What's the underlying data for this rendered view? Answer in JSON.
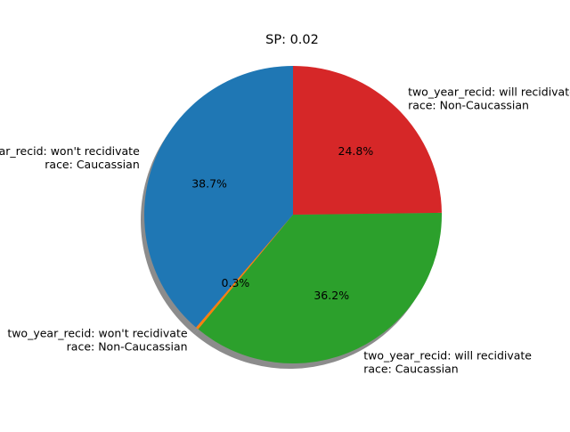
{
  "chart_data": {
    "type": "pie",
    "title": "SP: 0.02",
    "shadow": true,
    "start_angle_deg": 90,
    "direction": "counterclockwise",
    "slices": [
      {
        "label_lines": [
          "two_year_recid: won't recidivate",
          "race: Caucassian"
        ],
        "percent": 38.7,
        "percent_label": "38.7%",
        "color": "#1f77b4"
      },
      {
        "label_lines": [
          "two_year_recid: won't recidivate",
          "race: Non-Caucassian"
        ],
        "percent": 0.3,
        "percent_label": "0.3%",
        "color": "#ff7f0e"
      },
      {
        "label_lines": [
          "two_year_recid: will recidivate",
          "race: Caucassian"
        ],
        "percent": 36.2,
        "percent_label": "36.2%",
        "color": "#2ca02c"
      },
      {
        "label_lines": [
          "two_year_recid: will recidivate",
          "race: Non-Caucassian"
        ],
        "percent": 24.8,
        "percent_label": "24.8%",
        "color": "#d62728"
      }
    ]
  }
}
